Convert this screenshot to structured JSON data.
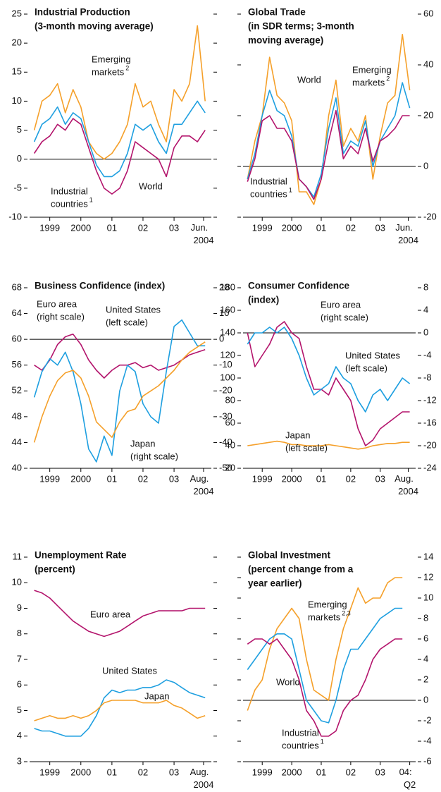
{
  "chart_data": [
    {
      "type": "line",
      "title": [
        "Industrial Production",
        "(3-month moving average)"
      ],
      "x": [
        1999.0,
        1999.25,
        1999.5,
        1999.75,
        2000.0,
        2000.25,
        2000.5,
        2000.75,
        2001.0,
        2001.25,
        2001.5,
        2001.75,
        2002.0,
        2002.25,
        2002.5,
        2002.75,
        2003.0,
        2003.25,
        2003.5,
        2003.75,
        2004.0,
        2004.25,
        2004.5
      ],
      "xlim": [
        1998.85,
        2004.7
      ],
      "xticks": [
        {
          "value": 1999.5,
          "label": "1999"
        },
        {
          "value": 2000.5,
          "label": "2000"
        },
        {
          "value": 2001.5,
          "label": "01"
        },
        {
          "value": 2002.5,
          "label": "02"
        },
        {
          "value": 2003.5,
          "label": "03"
        },
        {
          "value": 2004.45,
          "label": "Jun. 2004"
        }
      ],
      "ylim": [
        -10,
        25
      ],
      "yticks": [
        -10,
        -5,
        0,
        5,
        10,
        15,
        20,
        25
      ],
      "yaxis": "left",
      "hline": 0,
      "series": [
        {
          "name": [
            "Emerging",
            "markets"
          ],
          "sup": "2",
          "color": "#f5a02a",
          "values": [
            5,
            10,
            11,
            13,
            8,
            12,
            9,
            3,
            1,
            0,
            1,
            3,
            6,
            13,
            9,
            10,
            6,
            3,
            12,
            10,
            13,
            23,
            10
          ]
        },
        {
          "name": [
            "World"
          ],
          "color": "#1e9fe0",
          "values": [
            3,
            6,
            7,
            9,
            6,
            8,
            7,
            3,
            -1,
            -3,
            -3,
            -2,
            1,
            6,
            5,
            6,
            3,
            1,
            6,
            6,
            8,
            10,
            8
          ]
        },
        {
          "name": [
            "Industrial",
            "countries"
          ],
          "sup": "1",
          "color": "#b3146c",
          "values": [
            1,
            3,
            4,
            6,
            5,
            7,
            6,
            2,
            -2,
            -5,
            -6,
            -5,
            -2,
            3,
            2,
            1,
            0,
            -3,
            2,
            4,
            4,
            3,
            5
          ]
        }
      ]
    },
    {
      "type": "line",
      "title": [
        "Global Trade",
        "(in SDR terms; 3-month",
        "moving average)"
      ],
      "x": [
        1999.0,
        1999.25,
        1999.5,
        1999.75,
        2000.0,
        2000.25,
        2000.5,
        2000.75,
        2001.0,
        2001.25,
        2001.5,
        2001.75,
        2002.0,
        2002.25,
        2002.5,
        2002.75,
        2003.0,
        2003.25,
        2003.5,
        2003.75,
        2004.0,
        2004.25,
        2004.5
      ],
      "xlim": [
        1998.85,
        2004.7
      ],
      "xticks": [
        {
          "value": 1999.5,
          "label": "1999"
        },
        {
          "value": 2000.5,
          "label": "2000"
        },
        {
          "value": 2001.5,
          "label": "01"
        },
        {
          "value": 2002.5,
          "label": "02"
        },
        {
          "value": 2003.5,
          "label": "03"
        },
        {
          "value": 2004.45,
          "label": "Jun. 2004"
        }
      ],
      "ylim": [
        -20,
        60
      ],
      "yticks": [
        -20,
        0,
        20,
        40,
        60
      ],
      "yaxis": "right",
      "hline": 0,
      "series": [
        {
          "name": [
            "Emerging",
            "markets"
          ],
          "sup": "2",
          "color": "#f5a02a",
          "values": [
            -5,
            10,
            20,
            43,
            28,
            25,
            18,
            -10,
            -10,
            -15,
            -5,
            20,
            34,
            8,
            15,
            10,
            20,
            -5,
            12,
            25,
            28,
            52,
            30
          ]
        },
        {
          "name": [
            "World"
          ],
          "color": "#1e9fe0",
          "values": [
            -5,
            5,
            20,
            30,
            22,
            20,
            12,
            -5,
            -8,
            -12,
            -3,
            15,
            27,
            5,
            10,
            8,
            18,
            0,
            10,
            15,
            20,
            33,
            23
          ]
        },
        {
          "name": [
            "Industrial",
            "countries"
          ],
          "sup": "1",
          "color": "#b3146c",
          "values": [
            -6,
            3,
            18,
            20,
            15,
            15,
            10,
            -5,
            -8,
            -13,
            -5,
            10,
            22,
            3,
            8,
            5,
            15,
            2,
            10,
            12,
            15,
            20,
            20
          ]
        }
      ]
    },
    {
      "type": "line",
      "title": [
        "Business Confidence (index)"
      ],
      "x": [
        1999.0,
        1999.25,
        1999.5,
        1999.75,
        2000.0,
        2000.25,
        2000.5,
        2000.75,
        2001.0,
        2001.25,
        2001.5,
        2001.75,
        2002.0,
        2002.25,
        2002.5,
        2002.75,
        2003.0,
        2003.25,
        2003.5,
        2003.75,
        2004.0,
        2004.25,
        2004.5
      ],
      "xlim": [
        1998.85,
        2004.7
      ],
      "xticks": [
        {
          "value": 1999.5,
          "label": "1999"
        },
        {
          "value": 2000.5,
          "label": "2000"
        },
        {
          "value": 2001.5,
          "label": "01"
        },
        {
          "value": 2002.5,
          "label": "02"
        },
        {
          "value": 2003.5,
          "label": "03"
        },
        {
          "value": 2004.45,
          "label": "Aug. 2004"
        }
      ],
      "ylim": [
        40,
        68
      ],
      "yticks": [
        40,
        44,
        48,
        52,
        56,
        60,
        64,
        68
      ],
      "yaxis": "left",
      "hline": 60,
      "y2lim": [
        -50,
        20
      ],
      "y2ticks": [
        -50,
        -40,
        -30,
        -20,
        -10,
        0,
        10,
        20
      ],
      "series": [
        {
          "name": [
            "Euro area",
            "(right scale)"
          ],
          "axis": "y2",
          "color": "#b3146c",
          "values": [
            -10,
            -12,
            -8,
            -2,
            1,
            2,
            -2,
            -8,
            -12,
            -15,
            -12,
            -10,
            -10,
            -9,
            -11,
            -10,
            -12,
            -11,
            -10,
            -8,
            -6,
            -5,
            -4
          ]
        },
        {
          "name": [
            "United States",
            "(left scale)"
          ],
          "color": "#1e9fe0",
          "values": [
            51,
            55,
            57,
            56,
            58,
            55,
            50,
            43,
            41,
            45,
            42,
            52,
            56,
            55,
            50,
            48,
            47,
            55,
            62,
            63,
            61,
            59,
            59
          ]
        },
        {
          "name": [
            "Japan",
            "(right scale)"
          ],
          "axis": "y2",
          "color": "#f5a02a",
          "values": [
            -40,
            -30,
            -22,
            -16,
            -13,
            -12,
            -15,
            -22,
            -32,
            -35,
            -38,
            -32,
            -28,
            -27,
            -22,
            -20,
            -18,
            -15,
            -12,
            -8,
            -5,
            -3,
            -1
          ]
        }
      ]
    },
    {
      "type": "line",
      "title": [
        "Consumer Confidence",
        "(index)"
      ],
      "x": [
        1999.0,
        1999.25,
        1999.5,
        1999.75,
        2000.0,
        2000.25,
        2000.5,
        2000.75,
        2001.0,
        2001.25,
        2001.5,
        2001.75,
        2002.0,
        2002.25,
        2002.5,
        2002.75,
        2003.0,
        2003.25,
        2003.5,
        2003.75,
        2004.0,
        2004.25,
        2004.5
      ],
      "xlim": [
        1998.85,
        2004.7
      ],
      "xticks": [
        {
          "value": 1999.5,
          "label": "1999"
        },
        {
          "value": 2000.5,
          "label": "2000"
        },
        {
          "value": 2001.5,
          "label": "01"
        },
        {
          "value": 2002.5,
          "label": "02"
        },
        {
          "value": 2003.5,
          "label": "03"
        },
        {
          "value": 2004.45,
          "label": "Aug. 2004"
        }
      ],
      "ylim": [
        20,
        180
      ],
      "yticks": [
        20,
        40,
        60,
        80,
        100,
        120,
        140,
        160,
        180
      ],
      "yaxis": "left",
      "hline": 140,
      "y2lim": [
        -24,
        8
      ],
      "y2ticks": [
        -24,
        -20,
        -16,
        -12,
        -8,
        -4,
        0,
        4,
        8
      ],
      "series": [
        {
          "name": [
            "Euro area",
            "(right scale)"
          ],
          "axis": "y2",
          "color": "#b3146c",
          "values": [
            0,
            -6,
            -4,
            -2,
            1,
            2,
            0,
            -1,
            -6,
            -10,
            -10,
            -11,
            -8,
            -10,
            -12,
            -17,
            -20,
            -19,
            -17,
            -16,
            -15,
            -14,
            -14
          ]
        },
        {
          "name": [
            "United States",
            "(left scale)"
          ],
          "color": "#1e9fe0",
          "values": [
            130,
            140,
            140,
            145,
            140,
            145,
            135,
            120,
            100,
            85,
            90,
            95,
            110,
            100,
            95,
            80,
            70,
            85,
            90,
            80,
            90,
            100,
            95
          ]
        },
        {
          "name": [
            "Japan",
            "(left scale)"
          ],
          "color": "#f5a02a",
          "values": [
            40,
            41,
            42,
            43,
            44,
            43,
            41,
            41,
            40,
            40,
            40,
            41,
            40,
            39,
            38,
            37,
            38,
            40,
            41,
            42,
            42,
            43,
            43
          ]
        }
      ]
    },
    {
      "type": "line",
      "title": [
        "Unemployment Rate",
        "(percent)"
      ],
      "x": [
        1999.0,
        1999.25,
        1999.5,
        1999.75,
        2000.0,
        2000.25,
        2000.5,
        2000.75,
        2001.0,
        2001.25,
        2001.5,
        2001.75,
        2002.0,
        2002.25,
        2002.5,
        2002.75,
        2003.0,
        2003.25,
        2003.5,
        2003.75,
        2004.0,
        2004.25,
        2004.5
      ],
      "xlim": [
        1998.85,
        2004.7
      ],
      "xticks": [
        {
          "value": 1999.5,
          "label": "1999"
        },
        {
          "value": 2000.5,
          "label": "2000"
        },
        {
          "value": 2001.5,
          "label": "01"
        },
        {
          "value": 2002.5,
          "label": "02"
        },
        {
          "value": 2003.5,
          "label": "03"
        },
        {
          "value": 2004.45,
          "label": "Aug. 2004"
        }
      ],
      "ylim": [
        3,
        11
      ],
      "yticks": [
        3,
        4,
        5,
        6,
        7,
        8,
        9,
        10,
        11
      ],
      "yaxis": "left",
      "series": [
        {
          "name": [
            "Euro area"
          ],
          "color": "#b3146c",
          "values": [
            9.7,
            9.6,
            9.4,
            9.1,
            8.8,
            8.5,
            8.3,
            8.1,
            8.0,
            7.9,
            8.0,
            8.1,
            8.3,
            8.5,
            8.7,
            8.8,
            8.9,
            8.9,
            8.9,
            8.9,
            9.0,
            9.0,
            9.0
          ]
        },
        {
          "name": [
            "United States"
          ],
          "color": "#1e9fe0",
          "values": [
            4.3,
            4.2,
            4.2,
            4.1,
            4.0,
            4.0,
            4.0,
            4.3,
            4.8,
            5.5,
            5.8,
            5.7,
            5.8,
            5.8,
            5.9,
            5.9,
            6.0,
            6.2,
            6.1,
            5.9,
            5.7,
            5.6,
            5.5
          ]
        },
        {
          "name": [
            "Japan"
          ],
          "color": "#f5a02a",
          "values": [
            4.6,
            4.7,
            4.8,
            4.7,
            4.7,
            4.8,
            4.7,
            4.8,
            5.0,
            5.3,
            5.4,
            5.4,
            5.4,
            5.4,
            5.3,
            5.3,
            5.3,
            5.4,
            5.2,
            5.1,
            4.9,
            4.7,
            4.8
          ]
        }
      ]
    },
    {
      "type": "line",
      "title": [
        "Global Investment",
        "(percent change from a",
        "year earlier)"
      ],
      "x": [
        1999.0,
        1999.25,
        1999.5,
        1999.75,
        2000.0,
        2000.25,
        2000.5,
        2000.75,
        2001.0,
        2001.25,
        2001.5,
        2001.75,
        2002.0,
        2002.25,
        2002.5,
        2002.75,
        2003.0,
        2003.25,
        2003.5,
        2003.75,
        2004.0,
        2004.25
      ],
      "xlim": [
        1998.85,
        2004.7
      ],
      "xticks": [
        {
          "value": 1999.5,
          "label": "1999"
        },
        {
          "value": 2000.5,
          "label": "2000"
        },
        {
          "value": 2001.5,
          "label": "01"
        },
        {
          "value": 2002.5,
          "label": "02"
        },
        {
          "value": 2003.5,
          "label": "03"
        },
        {
          "value": 2004.5,
          "label": "04: Q2"
        }
      ],
      "ylim": [
        -6,
        14
      ],
      "yticks": [
        -6,
        -4,
        -2,
        0,
        2,
        4,
        6,
        8,
        10,
        12,
        14
      ],
      "yaxis": "right",
      "hline": 0,
      "series": [
        {
          "name": [
            "Emerging",
            "markets"
          ],
          "sup": "2,3",
          "color": "#f5a02a",
          "values": [
            -1,
            1,
            2,
            5,
            7,
            8,
            9,
            8,
            4,
            1,
            0.5,
            0,
            4,
            7,
            9,
            11,
            9.5,
            10,
            10,
            11.5,
            12,
            12
          ]
        },
        {
          "name": [
            "World"
          ],
          "color": "#1e9fe0",
          "values": [
            3,
            4,
            5,
            6,
            6.5,
            6.5,
            6,
            3,
            0,
            -1,
            -2,
            -2.2,
            0,
            3,
            5,
            5,
            6,
            7,
            8,
            8.5,
            9,
            9
          ]
        },
        {
          "name": [
            "Industrial",
            "countries"
          ],
          "sup": "1",
          "color": "#b3146c",
          "values": [
            5.5,
            6,
            6,
            5.5,
            6,
            5,
            4,
            2,
            -1,
            -2,
            -3.5,
            -3.5,
            -3,
            -1,
            0,
            0.5,
            2,
            4,
            5,
            5.5,
            6,
            6
          ]
        }
      ]
    }
  ]
}
